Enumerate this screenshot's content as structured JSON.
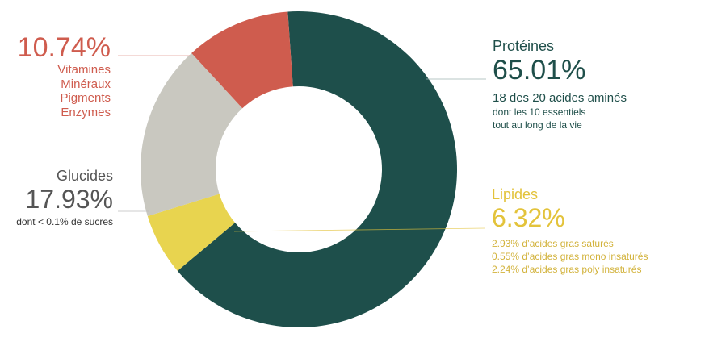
{
  "chart_data": {
    "type": "pie",
    "variant": "donut",
    "start_angle_deg": -4,
    "direction": "clockwise",
    "segments": [
      {
        "name": "Protéines",
        "value": 65.01,
        "label": "65.01%",
        "color": "#1e4f4b"
      },
      {
        "name": "Lipides",
        "value": 6.32,
        "label": "6.32%",
        "color": "#e8d44f"
      },
      {
        "name": "Glucides",
        "value": 17.93,
        "label": "17.93%",
        "color": "#c9c8c0"
      },
      {
        "name": "Vitamines Minéraux Pigments Enzymes",
        "value": 10.74,
        "label": "10.74%",
        "color": "#cf5c4e"
      }
    ]
  },
  "labels": {
    "vitamines": {
      "pct": "10.74%",
      "lines": [
        "Vitamines",
        "Minéraux",
        "Pigments",
        "Enzymes"
      ],
      "color": "#cf5c4e"
    },
    "glucides": {
      "name": "Glucides",
      "pct": "17.93%",
      "note": "dont < 0.1% de sucres",
      "color": "#555555"
    },
    "proteines": {
      "name": "Protéines",
      "pct": "65.01%",
      "note1": "18 des 20 acides aminés",
      "note2": "dont les 10 essentiels",
      "note3": "tout au long de la vie",
      "color": "#1f4f4a"
    },
    "lipides": {
      "name": "Lipides",
      "pct": "6.32%",
      "notes": [
        "2.93% d’acides gras saturés",
        "0.55% d’acides gras mono insaturés",
        "2.24% d’acides gras poly insaturés"
      ],
      "color": "#e3c33b"
    }
  }
}
